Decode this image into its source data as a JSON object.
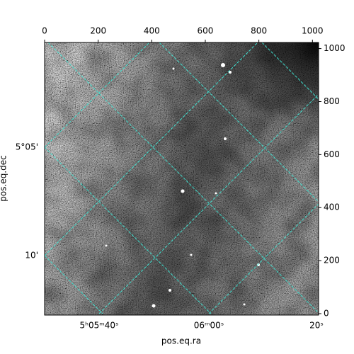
{
  "chart_data": {
    "type": "image",
    "xlabel": "pos.eq.ra",
    "ylabel": "pos.eq.dec",
    "xlim": [
      0,
      1023
    ],
    "ylim": [
      0,
      1023
    ],
    "xticks": [
      0,
      200,
      400,
      600,
      800,
      1000
    ],
    "yticks": [
      0,
      200,
      400,
      600,
      800,
      1000
    ],
    "ra_tick_labels": [
      "5ʰ05ᵐ40ˢ",
      "06ᵐ00ˢ",
      "20ˢ"
    ],
    "dec_tick_labels": [
      "5°05'",
      "10'"
    ],
    "grid_color": "#40e0d0"
  }
}
